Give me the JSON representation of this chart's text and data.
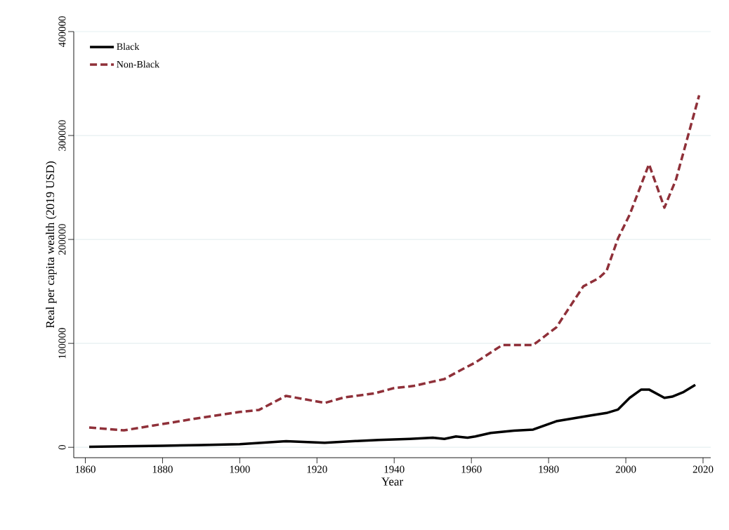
{
  "chart_data": {
    "type": "line",
    "xlabel": "Year",
    "ylabel": "Real per capita wealth (2019 USD)",
    "xlim": [
      1857,
      2022
    ],
    "ylim": [
      -10000,
      400000
    ],
    "xticks": [
      1860,
      1880,
      1900,
      1920,
      1940,
      1960,
      1980,
      2000,
      2020
    ],
    "yticks": [
      0,
      100000,
      200000,
      300000,
      400000
    ],
    "grid": "y",
    "legend": "top left",
    "marker": "none",
    "series": [
      {
        "name": "Black",
        "color": "#000000",
        "line_style": "solid",
        "x": [
          1861,
          1870,
          1880,
          1890,
          1900,
          1912,
          1922,
          1930,
          1936,
          1944,
          1950,
          1953,
          1956,
          1959,
          1961,
          1965,
          1971,
          1976,
          1982,
          1991,
          1995,
          1998,
          2001,
          2004,
          2006,
          2010,
          2012,
          2015,
          2018
        ],
        "values": [
          500,
          900,
          1500,
          2200,
          3000,
          5900,
          4300,
          6000,
          7000,
          8100,
          9300,
          8100,
          10400,
          9300,
          10400,
          13800,
          16000,
          17100,
          25100,
          30700,
          33000,
          36400,
          47600,
          55600,
          55600,
          47600,
          48700,
          53300,
          60100
        ]
      },
      {
        "name": "Non-Black",
        "color": "#8f3039",
        "line_style": "dashed",
        "x": [
          1861,
          1870,
          1880,
          1890,
          1900,
          1905,
          1912,
          1922,
          1927,
          1935,
          1940,
          1945,
          1953,
          1957,
          1961,
          1968,
          1976,
          1982,
          1989,
          1993,
          1995,
          1998,
          2001,
          2006,
          2010,
          2013,
          2019
        ],
        "values": [
          19000,
          16300,
          22400,
          28500,
          34000,
          36000,
          49500,
          42700,
          48000,
          52000,
          57000,
          59000,
          65700,
          73800,
          81500,
          98400,
          98400,
          115400,
          154900,
          162800,
          169600,
          201200,
          223800,
          272400,
          230600,
          257700,
          338700
        ]
      }
    ]
  }
}
